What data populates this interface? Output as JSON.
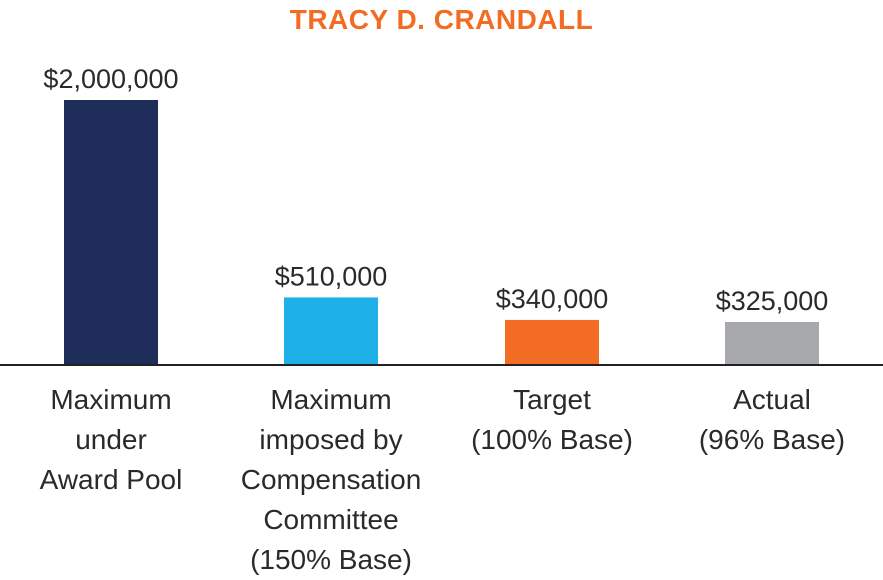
{
  "chart_data": {
    "type": "bar",
    "title": "TRACY D. CRANDALL",
    "categories": [
      [
        "Maximum",
        "under",
        "Award Pool"
      ],
      [
        "Maximum",
        "imposed by",
        "Compensation",
        "Committee",
        "(150% Base)"
      ],
      [
        "Target",
        "(100% Base)"
      ],
      [
        "Actual",
        "(96% Base)"
      ]
    ],
    "values": [
      2000000,
      510000,
      340000,
      325000
    ],
    "data_labels": [
      "$2,000,000",
      "$510,000",
      "$340,000",
      "$325,000"
    ],
    "colors": [
      "#1f2d5a",
      "#1eb1e7",
      "#f26c23",
      "#a7a9ac"
    ],
    "title_color": "#f26c23",
    "ylim": [
      0,
      2000000
    ],
    "grid": false,
    "legend": "none"
  }
}
